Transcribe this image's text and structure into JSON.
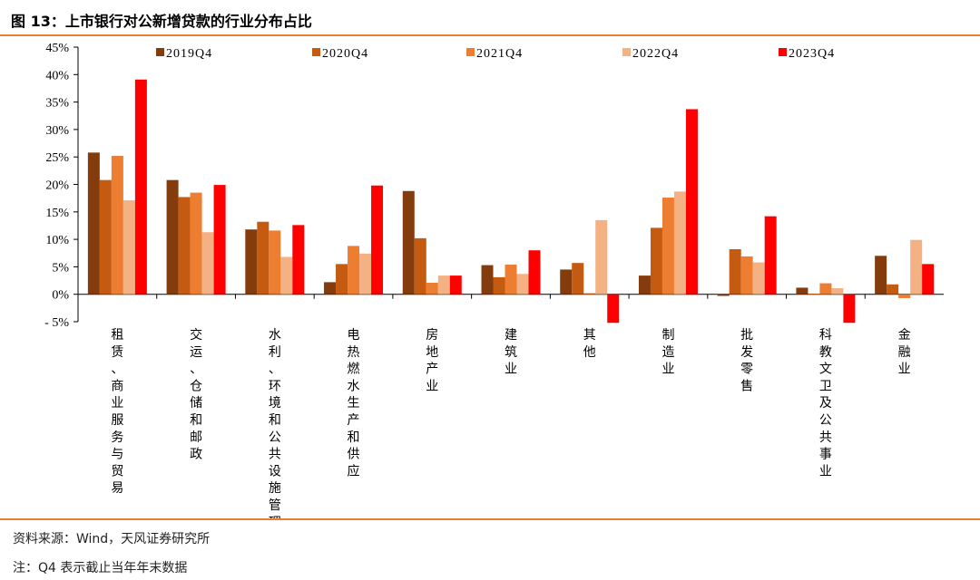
{
  "title": "图 13：上市银行对公新增贷款的行业分布占比",
  "source": "资料来源：Wind，天风证券研究所",
  "note": "注：Q4 表示截止当年年末数据",
  "chart_data": {
    "type": "bar",
    "title": "",
    "xlabel": "",
    "ylabel": "",
    "ylim": [
      -5,
      45
    ],
    "yticks": [
      "45%",
      "40%",
      "35%",
      "30%",
      "25%",
      "20%",
      "15%",
      "10%",
      "5%",
      "0%",
      "- 5%"
    ],
    "ytick_values": [
      45,
      40,
      35,
      30,
      25,
      20,
      15,
      10,
      5,
      0,
      -5
    ],
    "grid": false,
    "legend_position": "top",
    "categories": [
      "租赁、商业服务与贸易",
      "交运、仓储和邮政",
      "水利、环境和公共设施管理",
      "电热燃水生产和供应",
      "房地产业",
      "建筑业",
      "其他",
      "制造业",
      "批发零售",
      "科教文卫及公共事业",
      "金融业"
    ],
    "series": [
      {
        "name": "2019Q4",
        "color": "#843C0C",
        "values": [
          25.8,
          20.8,
          11.8,
          2.2,
          18.8,
          5.3,
          4.5,
          3.4,
          -0.3,
          1.2,
          7.0
        ]
      },
      {
        "name": "2020Q4",
        "color": "#C55A11",
        "values": [
          20.8,
          17.7,
          13.2,
          5.5,
          10.2,
          3.1,
          5.7,
          12.1,
          8.2,
          0.1,
          1.8
        ]
      },
      {
        "name": "2021Q4",
        "color": "#ED7D31",
        "values": [
          25.2,
          18.5,
          11.6,
          8.8,
          2.1,
          5.4,
          0.2,
          17.6,
          6.9,
          2.0,
          -0.7
        ]
      },
      {
        "name": "2022Q4",
        "color": "#F4B183",
        "values": [
          17.1,
          11.3,
          6.8,
          7.4,
          3.4,
          3.7,
          13.5,
          18.7,
          5.8,
          1.1,
          9.9
        ]
      },
      {
        "name": "2023Q4",
        "color": "#FF0000",
        "values": [
          39.1,
          19.9,
          12.6,
          19.8,
          3.4,
          8.0,
          -5.2,
          33.7,
          14.2,
          -5.2,
          5.5
        ]
      }
    ]
  }
}
